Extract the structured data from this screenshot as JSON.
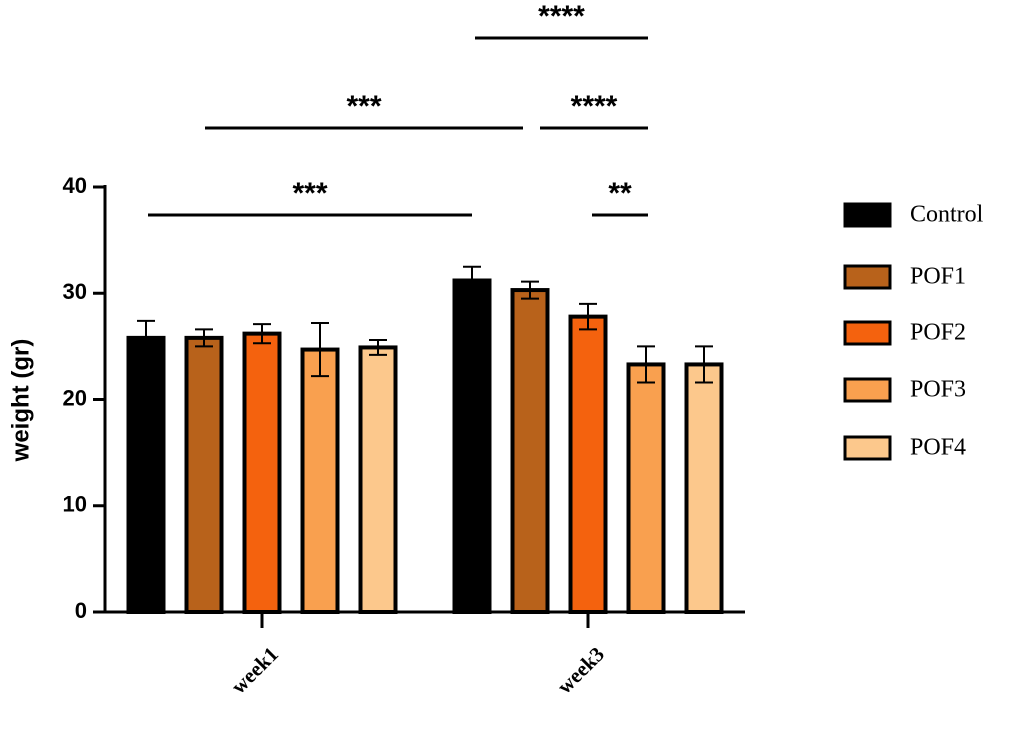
{
  "chart_data": {
    "type": "bar",
    "y_label": "weight (gr)",
    "categories": [
      "week1",
      "week3"
    ],
    "series": [
      {
        "name": "Control",
        "color": "#000000",
        "values": [
          25.8,
          31.2
        ],
        "errors": [
          1.6,
          1.3
        ]
      },
      {
        "name": "POF1",
        "color": "#b8621b",
        "values": [
          25.8,
          30.3
        ],
        "errors": [
          0.8,
          0.8
        ]
      },
      {
        "name": "POF2",
        "color": "#f4620e",
        "values": [
          26.2,
          27.8
        ],
        "errors": [
          0.9,
          1.2
        ]
      },
      {
        "name": "POF3",
        "color": "#f9a04f",
        "values": [
          24.7,
          23.3
        ],
        "errors": [
          2.5,
          1.7
        ]
      },
      {
        "name": "POF4",
        "color": "#fcc88c",
        "values": [
          24.9,
          23.3
        ],
        "errors": [
          0.7,
          1.7
        ]
      }
    ],
    "ylim": [
      0,
      40
    ],
    "yticks": [
      0,
      10,
      20,
      30,
      40
    ],
    "annotations": [
      "****",
      "***",
      "****",
      "***",
      "**"
    ]
  }
}
